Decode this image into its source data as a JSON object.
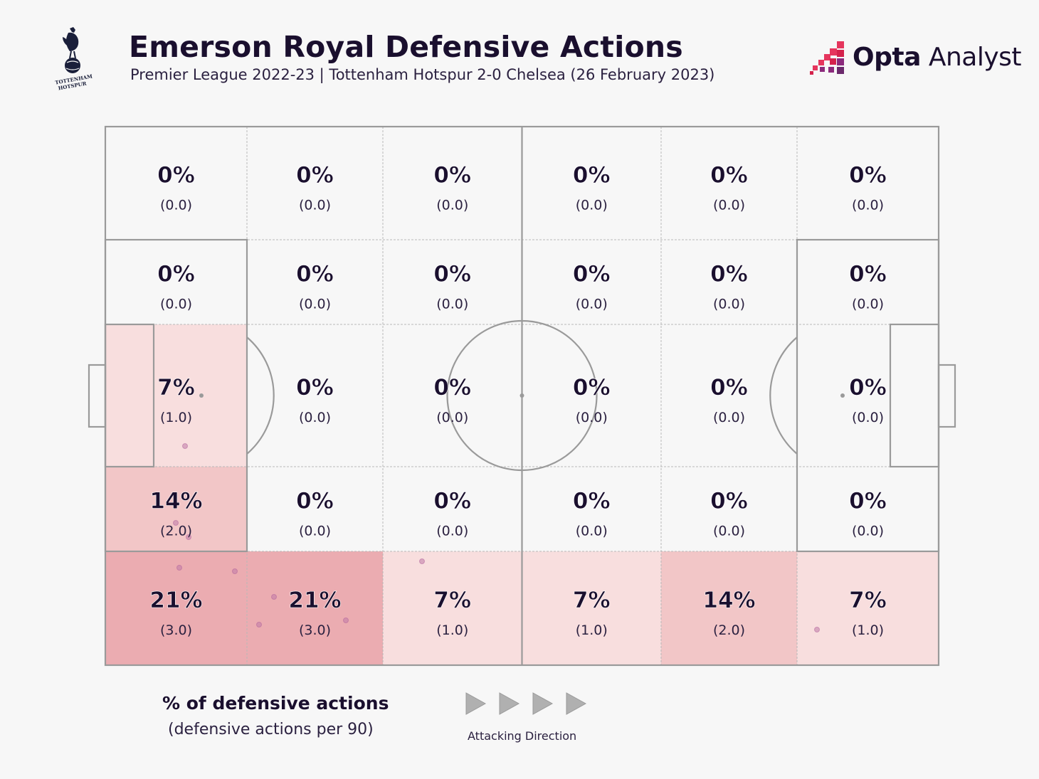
{
  "header": {
    "title": "Emerson Royal Defensive Actions",
    "subtitle": "Premier League 2022-23 | Tottenham Hotspur 2-0 Chelsea (26 February 2023)",
    "crest_text_top": "TOTTENHAM",
    "crest_text_bottom": "HOTSPUR"
  },
  "brand": {
    "name_bold": "Opta",
    "name_regular": " Analyst",
    "accent_colors": [
      "#e5355d",
      "#8b2a7c",
      "#d4224c"
    ]
  },
  "legend": {
    "title": "% of defensive actions",
    "subtitle": "(defensive actions per 90)"
  },
  "direction": {
    "label": "Attacking Direction",
    "arrow_count": 4,
    "arrow_color": "#b0b0b0"
  },
  "colors": {
    "background": "#f7f7f7",
    "pitch_lines": "#999999",
    "zone_lines": "#b5b5b5",
    "text_dark": "#1a0f2e",
    "event_dot": "#c07aa8"
  },
  "chart_data": {
    "type": "heatmap",
    "columns": 6,
    "rows": 5,
    "zones": [
      [
        {
          "pct": "0%",
          "per90": "(0.0)"
        },
        {
          "pct": "0%",
          "per90": "(0.0)"
        },
        {
          "pct": "0%",
          "per90": "(0.0)"
        },
        {
          "pct": "0%",
          "per90": "(0.0)"
        },
        {
          "pct": "0%",
          "per90": "(0.0)"
        },
        {
          "pct": "0%",
          "per90": "(0.0)"
        }
      ],
      [
        {
          "pct": "0%",
          "per90": "(0.0)"
        },
        {
          "pct": "0%",
          "per90": "(0.0)"
        },
        {
          "pct": "0%",
          "per90": "(0.0)"
        },
        {
          "pct": "0%",
          "per90": "(0.0)"
        },
        {
          "pct": "0%",
          "per90": "(0.0)"
        },
        {
          "pct": "0%",
          "per90": "(0.0)"
        }
      ],
      [
        {
          "pct": "7%",
          "per90": "(1.0)"
        },
        {
          "pct": "0%",
          "per90": "(0.0)"
        },
        {
          "pct": "0%",
          "per90": "(0.0)"
        },
        {
          "pct": "0%",
          "per90": "(0.0)"
        },
        {
          "pct": "0%",
          "per90": "(0.0)"
        },
        {
          "pct": "0%",
          "per90": "(0.0)"
        }
      ],
      [
        {
          "pct": "14%",
          "per90": "(2.0)"
        },
        {
          "pct": "0%",
          "per90": "(0.0)"
        },
        {
          "pct": "0%",
          "per90": "(0.0)"
        },
        {
          "pct": "0%",
          "per90": "(0.0)"
        },
        {
          "pct": "0%",
          "per90": "(0.0)"
        },
        {
          "pct": "0%",
          "per90": "(0.0)"
        }
      ],
      [
        {
          "pct": "21%",
          "per90": "(3.0)"
        },
        {
          "pct": "21%",
          "per90": "(3.0)"
        },
        {
          "pct": "7%",
          "per90": "(1.0)"
        },
        {
          "pct": "7%",
          "per90": "(1.0)"
        },
        {
          "pct": "14%",
          "per90": "(2.0)"
        },
        {
          "pct": "7%",
          "per90": "(1.0)"
        }
      ]
    ],
    "shade_scale": {
      "0": "#f7f7f7",
      "7": "#f8dede",
      "14": "#f2c6c7",
      "21": "#ebacb1"
    }
  }
}
